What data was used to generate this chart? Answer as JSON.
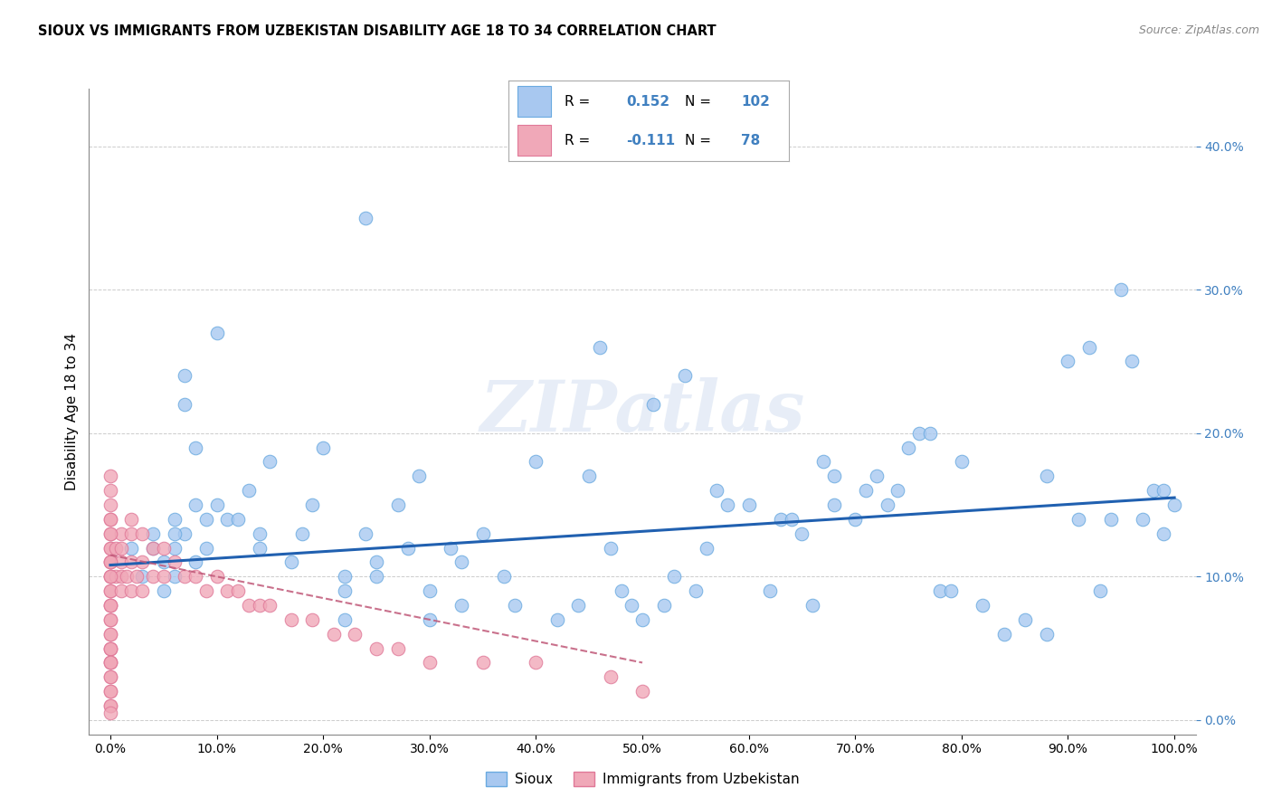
{
  "title": "SIOUX VS IMMIGRANTS FROM UZBEKISTAN DISABILITY AGE 18 TO 34 CORRELATION CHART",
  "source": "Source: ZipAtlas.com",
  "ylabel": "Disability Age 18 to 34",
  "xlim": [
    -0.02,
    1.02
  ],
  "ylim": [
    -0.01,
    0.44
  ],
  "yticks": [
    0.0,
    0.1,
    0.2,
    0.3,
    0.4
  ],
  "ytick_labels": [
    "0.0%",
    "10.0%",
    "20.0%",
    "30.0%",
    "40.0%"
  ],
  "xticks": [
    0.0,
    0.1,
    0.2,
    0.3,
    0.4,
    0.5,
    0.6,
    0.7,
    0.8,
    0.9,
    1.0
  ],
  "xtick_labels": [
    "0.0%",
    "10.0%",
    "20.0%",
    "30.0%",
    "40.0%",
    "50.0%",
    "60.0%",
    "70.0%",
    "80.0%",
    "90.0%",
    "100.0%"
  ],
  "sioux_color": "#a8c8f0",
  "uzbek_color": "#f0a8b8",
  "sioux_edge": "#6aaae0",
  "uzbek_edge": "#e07898",
  "trend_sioux_color": "#2060b0",
  "trend_uzbek_color": "#c05878",
  "R_sioux": 0.152,
  "N_sioux": 102,
  "R_uzbek": -0.111,
  "N_uzbek": 78,
  "watermark": "ZIPatlas",
  "ytick_color": "#4080c0",
  "sioux_x": [
    0.02,
    0.04,
    0.05,
    0.05,
    0.06,
    0.06,
    0.07,
    0.07,
    0.07,
    0.08,
    0.08,
    0.08,
    0.09,
    0.09,
    0.1,
    0.11,
    0.12,
    0.13,
    0.14,
    0.14,
    0.15,
    0.17,
    0.18,
    0.19,
    0.2,
    0.22,
    0.22,
    0.22,
    0.24,
    0.25,
    0.25,
    0.27,
    0.28,
    0.29,
    0.3,
    0.3,
    0.32,
    0.33,
    0.33,
    0.35,
    0.37,
    0.38,
    0.4,
    0.42,
    0.44,
    0.45,
    0.46,
    0.47,
    0.48,
    0.49,
    0.5,
    0.51,
    0.52,
    0.53,
    0.54,
    0.55,
    0.56,
    0.57,
    0.58,
    0.6,
    0.62,
    0.63,
    0.64,
    0.65,
    0.66,
    0.67,
    0.68,
    0.68,
    0.7,
    0.71,
    0.72,
    0.73,
    0.74,
    0.75,
    0.76,
    0.77,
    0.78,
    0.79,
    0.8,
    0.82,
    0.84,
    0.86,
    0.88,
    0.88,
    0.9,
    0.91,
    0.92,
    0.93,
    0.94,
    0.95,
    0.96,
    0.97,
    0.98,
    0.99,
    0.99,
    1.0,
    0.03,
    0.04,
    0.06,
    0.06,
    0.1,
    0.24
  ],
  "sioux_y": [
    0.12,
    0.13,
    0.11,
    0.09,
    0.14,
    0.1,
    0.24,
    0.22,
    0.13,
    0.19,
    0.15,
    0.11,
    0.14,
    0.12,
    0.27,
    0.14,
    0.14,
    0.16,
    0.13,
    0.12,
    0.18,
    0.11,
    0.13,
    0.15,
    0.19,
    0.1,
    0.09,
    0.07,
    0.13,
    0.11,
    0.1,
    0.15,
    0.12,
    0.17,
    0.09,
    0.07,
    0.12,
    0.11,
    0.08,
    0.13,
    0.1,
    0.08,
    0.18,
    0.07,
    0.08,
    0.17,
    0.26,
    0.12,
    0.09,
    0.08,
    0.07,
    0.22,
    0.08,
    0.1,
    0.24,
    0.09,
    0.12,
    0.16,
    0.15,
    0.15,
    0.09,
    0.14,
    0.14,
    0.13,
    0.08,
    0.18,
    0.17,
    0.15,
    0.14,
    0.16,
    0.17,
    0.15,
    0.16,
    0.19,
    0.2,
    0.2,
    0.09,
    0.09,
    0.18,
    0.08,
    0.06,
    0.07,
    0.17,
    0.06,
    0.25,
    0.14,
    0.26,
    0.09,
    0.14,
    0.3,
    0.25,
    0.14,
    0.16,
    0.13,
    0.16,
    0.15,
    0.1,
    0.12,
    0.13,
    0.12,
    0.15,
    0.35
  ],
  "uzbek_x": [
    0.0,
    0.0,
    0.0,
    0.0,
    0.0,
    0.0,
    0.0,
    0.0,
    0.0,
    0.0,
    0.0,
    0.0,
    0.0,
    0.0,
    0.0,
    0.0,
    0.0,
    0.0,
    0.0,
    0.0,
    0.0,
    0.0,
    0.0,
    0.0,
    0.0,
    0.0,
    0.0,
    0.0,
    0.0,
    0.0,
    0.005,
    0.005,
    0.01,
    0.01,
    0.01,
    0.01,
    0.01,
    0.015,
    0.02,
    0.02,
    0.02,
    0.02,
    0.025,
    0.03,
    0.03,
    0.03,
    0.04,
    0.04,
    0.05,
    0.05,
    0.06,
    0.07,
    0.08,
    0.09,
    0.1,
    0.11,
    0.12,
    0.13,
    0.14,
    0.15,
    0.17,
    0.19,
    0.21,
    0.23,
    0.25,
    0.27,
    0.3,
    0.35,
    0.4,
    0.47,
    0.5,
    0.0,
    0.0,
    0.0,
    0.0,
    0.0,
    0.0,
    0.0
  ],
  "uzbek_y": [
    0.16,
    0.14,
    0.13,
    0.12,
    0.12,
    0.11,
    0.11,
    0.1,
    0.1,
    0.09,
    0.09,
    0.08,
    0.08,
    0.07,
    0.07,
    0.06,
    0.06,
    0.05,
    0.05,
    0.05,
    0.04,
    0.04,
    0.04,
    0.03,
    0.03,
    0.02,
    0.02,
    0.01,
    0.01,
    0.005,
    0.12,
    0.1,
    0.13,
    0.12,
    0.11,
    0.1,
    0.09,
    0.1,
    0.14,
    0.13,
    0.11,
    0.09,
    0.1,
    0.13,
    0.11,
    0.09,
    0.12,
    0.1,
    0.12,
    0.1,
    0.11,
    0.1,
    0.1,
    0.09,
    0.1,
    0.09,
    0.09,
    0.08,
    0.08,
    0.08,
    0.07,
    0.07,
    0.06,
    0.06,
    0.05,
    0.05,
    0.04,
    0.04,
    0.04,
    0.03,
    0.02,
    0.17,
    0.15,
    0.14,
    0.13,
    0.11,
    0.1,
    0.08
  ]
}
